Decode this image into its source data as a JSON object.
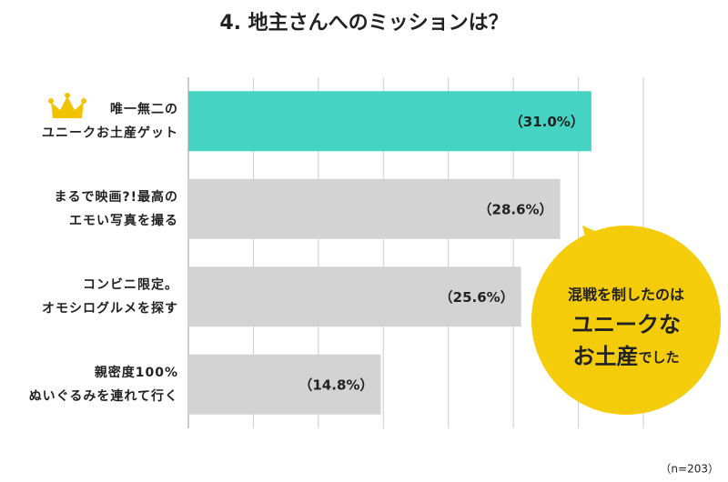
{
  "chart_data": {
    "type": "barh",
    "title": "4. 地主さんへのミッションは？",
    "categories": [
      [
        "唯一無二の",
        "ユニークお土産ゲット"
      ],
      [
        "まるで映画?!最高の",
        "エモい写真を撮る"
      ],
      [
        "コンビニ限定。",
        "オモシログルメを探す"
      ],
      [
        "親密度100%",
        "ぬいぐるみを連れて行く"
      ]
    ],
    "values": [
      31.0,
      28.6,
      25.6,
      14.8
    ],
    "value_labels": [
      "（31.0%）",
      "（28.6%）",
      "（25.6%）",
      "（14.8%）"
    ],
    "colors": [
      "#45d4c4",
      "#d3d3d3",
      "#d3d3d3",
      "#d3d3d3"
    ],
    "xlim": [
      0,
      35
    ],
    "xticks": [
      0,
      5,
      10,
      15,
      20,
      25,
      30,
      35
    ],
    "grid": true,
    "annotation": [
      "混戦を制したのは",
      "ユニークな",
      "お土産",
      "でした"
    ],
    "note": "（n=203）"
  }
}
